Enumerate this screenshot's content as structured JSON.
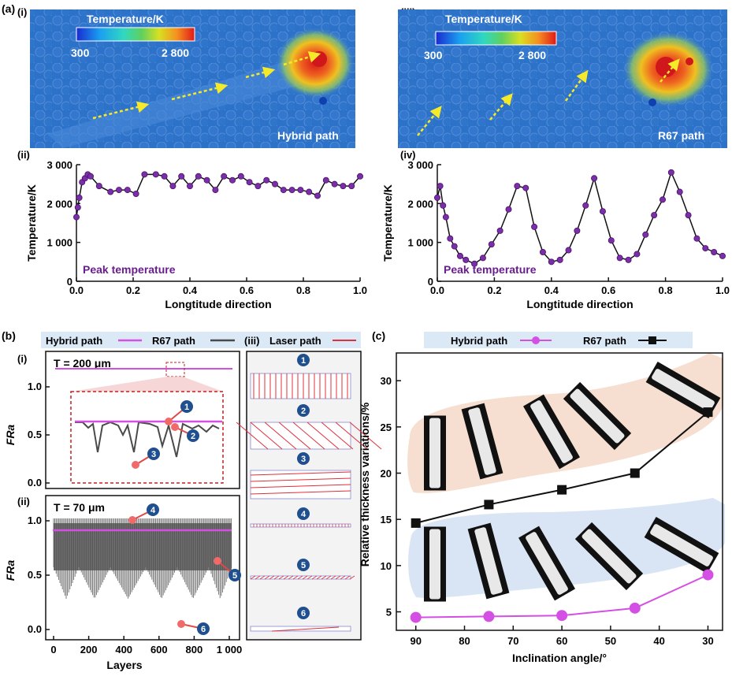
{
  "panels": {
    "a": "(a)",
    "a_i": "(i)",
    "a_ii": "(ii)",
    "a_iii": "(iii)",
    "a_iv": "(iv)",
    "b": "(b)",
    "b_i": "(i)",
    "b_ii": "(ii)",
    "b_iii": "(iii)",
    "c": "(c)"
  },
  "heatmaps": [
    {
      "colorbar_title": "Temperature/K",
      "cb_min": "300",
      "cb_max": "2 800",
      "label": "Hybrid path",
      "colors": {
        "bg": "#2d72c9",
        "hot": "#e1261d",
        "warm": "#f2a31e"
      }
    },
    {
      "colorbar_title": "Temperature/K",
      "cb_min": "300",
      "cb_max": "2 800",
      "label": "R67 path",
      "colors": {
        "bg": "#2d72c9",
        "hot": "#e1261d",
        "warm": "#f2a31e"
      }
    }
  ],
  "b_legend": {
    "hybrid": "Hybrid path",
    "r67": "R67 path",
    "laser_label": "Laser path",
    "colors": {
      "hybrid": "#d44fe3",
      "r67": "#4a4a4a",
      "laser": "#e0303a"
    }
  },
  "b_i": {
    "t_label": "T = 200 μm",
    "ylabel": "FRa",
    "yticks": [
      "0.0",
      "0.5",
      "1.0"
    ],
    "markers": [
      "1",
      "2",
      "3"
    ]
  },
  "b_ii": {
    "t_label": "T = 70 μm",
    "ylabel": "FRa",
    "yticks": [
      "0.0",
      "0.5",
      "1.0"
    ],
    "xticks": [
      "0",
      "200",
      "400",
      "600",
      "800",
      "1 000"
    ],
    "xlabel": "Layers",
    "markers": [
      "4",
      "5",
      "6"
    ]
  },
  "b_iii": {
    "steps": [
      "1",
      "2",
      "3",
      "4",
      "5",
      "6"
    ]
  },
  "c_legend": {
    "hybrid": "Hybrid path",
    "r67": "R67 path"
  },
  "chart_data": [
    {
      "type": "line",
      "panel": "a(ii)",
      "title": "Peak temperature",
      "xlabel": "Longtitude direction",
      "ylabel": "Temperature/K",
      "xlim": [
        0,
        1.0
      ],
      "ylim": [
        0,
        3000
      ],
      "xticks": [
        "0.0",
        "0.2",
        "0.4",
        "0.6",
        "0.8",
        "1.0"
      ],
      "yticks": [
        "0",
        "1 000",
        "2 000",
        "3 000"
      ],
      "color": "#6a1d8f",
      "x": [
        0.0,
        0.005,
        0.01,
        0.02,
        0.03,
        0.04,
        0.05,
        0.08,
        0.12,
        0.15,
        0.18,
        0.21,
        0.24,
        0.28,
        0.31,
        0.34,
        0.37,
        0.4,
        0.43,
        0.46,
        0.49,
        0.52,
        0.55,
        0.58,
        0.61,
        0.64,
        0.67,
        0.7,
        0.73,
        0.76,
        0.79,
        0.82,
        0.85,
        0.88,
        0.91,
        0.94,
        0.97,
        1.0
      ],
      "y": [
        1650,
        1900,
        2150,
        2550,
        2650,
        2750,
        2700,
        2450,
        2300,
        2350,
        2350,
        2250,
        2750,
        2750,
        2700,
        2450,
        2700,
        2450,
        2700,
        2600,
        2350,
        2700,
        2600,
        2700,
        2550,
        2450,
        2600,
        2500,
        2350,
        2350,
        2350,
        2300,
        2200,
        2600,
        2500,
        2450,
        2450,
        2700
      ]
    },
    {
      "type": "line",
      "panel": "a(iv)",
      "title": "Peak temperature",
      "xlabel": "Longtitude direction",
      "ylabel": "Temperature/K",
      "xlim": [
        0,
        1.0
      ],
      "ylim": [
        0,
        3000
      ],
      "xticks": [
        "0.0",
        "0.2",
        "0.4",
        "0.6",
        "0.8",
        "1.0"
      ],
      "yticks": [
        "0",
        "1 000",
        "2 000",
        "3 000"
      ],
      "color": "#6a1d8f",
      "x": [
        0.0,
        0.01,
        0.02,
        0.03,
        0.045,
        0.06,
        0.08,
        0.1,
        0.13,
        0.16,
        0.19,
        0.22,
        0.25,
        0.28,
        0.31,
        0.34,
        0.37,
        0.4,
        0.43,
        0.46,
        0.49,
        0.52,
        0.55,
        0.58,
        0.61,
        0.64,
        0.67,
        0.7,
        0.73,
        0.76,
        0.79,
        0.82,
        0.85,
        0.88,
        0.91,
        0.94,
        0.97,
        1.0
      ],
      "y": [
        2150,
        2450,
        1950,
        1650,
        1100,
        900,
        650,
        550,
        450,
        600,
        950,
        1300,
        1850,
        2450,
        2400,
        1400,
        750,
        500,
        550,
        800,
        1300,
        1950,
        2650,
        1800,
        1050,
        600,
        550,
        700,
        1200,
        1700,
        2100,
        2800,
        2300,
        1700,
        1100,
        850,
        750,
        650
      ]
    },
    {
      "type": "line",
      "panel": "c",
      "xlabel": "Inclination angle/°",
      "ylabel": "Relative thickness variations/%",
      "xlim": [
        94,
        27
      ],
      "ylim": [
        3,
        33
      ],
      "xticks": [
        "90",
        "80",
        "70",
        "60",
        "50",
        "40",
        "30"
      ],
      "yticks": [
        "5",
        "10",
        "15",
        "20",
        "25",
        "30"
      ],
      "categories": [
        90,
        75,
        60,
        45,
        30
      ],
      "series": [
        {
          "name": "Hybrid path",
          "values": [
            4.4,
            4.5,
            4.6,
            5.4,
            9.0
          ],
          "color": "#d44fe3"
        },
        {
          "name": "R67 path",
          "values": [
            14.6,
            16.6,
            18.2,
            20.0,
            26.6
          ],
          "color": "#111111"
        }
      ]
    }
  ]
}
